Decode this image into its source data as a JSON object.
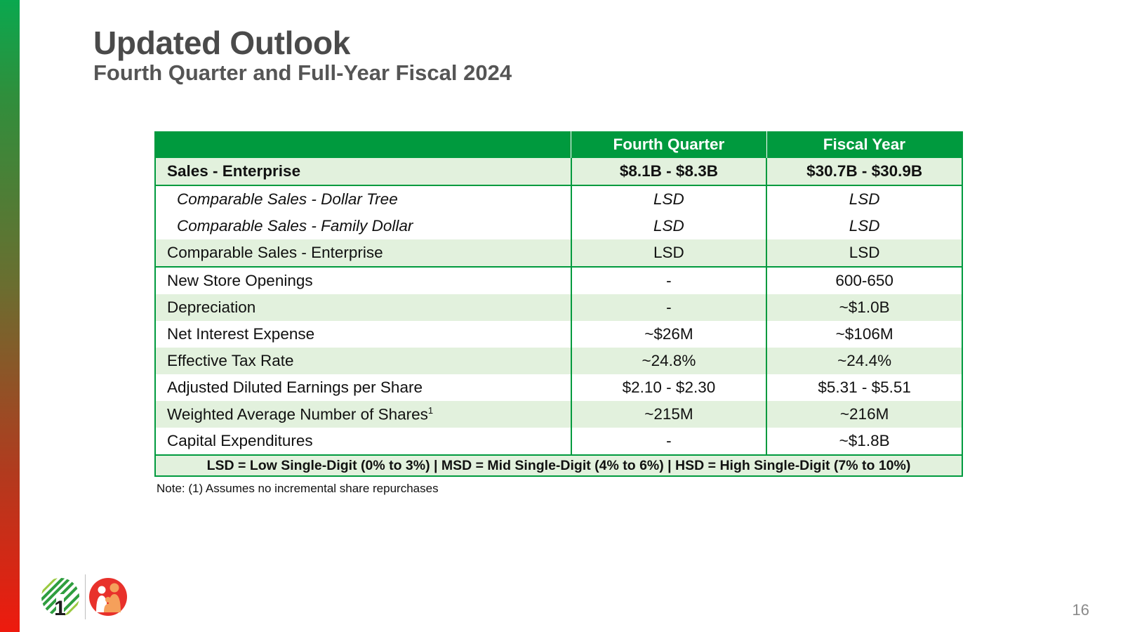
{
  "header": {
    "title": "Updated Outlook",
    "subtitle": "Fourth Quarter and Full-Year Fiscal 2024"
  },
  "table": {
    "columns": [
      "",
      "Fourth Quarter",
      "Fiscal Year"
    ],
    "rows": [
      {
        "label": "Sales - Enterprise",
        "q4": "$8.1B - $8.3B",
        "fy": "$30.7B - $30.9B"
      },
      {
        "label": "Comparable Sales - Dollar Tree",
        "q4": "LSD",
        "fy": "LSD"
      },
      {
        "label": "Comparable Sales - Family Dollar",
        "q4": "LSD",
        "fy": "LSD"
      },
      {
        "label": "Comparable Sales - Enterprise",
        "q4": "LSD",
        "fy": "LSD"
      },
      {
        "label": "New Store Openings",
        "q4": "-",
        "fy": "600-650"
      },
      {
        "label": "Depreciation",
        "q4": "-",
        "fy": "~$1.0B"
      },
      {
        "label": "Net Interest Expense",
        "q4": "~$26M",
        "fy": "~$106M"
      },
      {
        "label": "Effective Tax Rate",
        "q4": "~24.8%",
        "fy": "~24.4%"
      },
      {
        "label": "Adjusted Diluted Earnings per Share",
        "q4": "$2.10 - $2.30",
        "fy": "$5.31 - $5.51"
      },
      {
        "label": "Weighted Average Number of Shares",
        "sup": "1",
        "q4": "~215M",
        "fy": "~216M"
      },
      {
        "label": "Capital Expenditures",
        "q4": "-",
        "fy": "~$1.8B"
      }
    ],
    "legend": "LSD = Low Single-Digit (0% to 3%) | MSD = Mid Single-Digit (4% to 6%) | HSD = High Single-Digit (7% to 10%)"
  },
  "note": "Note: (1) Assumes no incremental share repurchases",
  "footer": {
    "page_number": "16",
    "logos": [
      "dollar-tree-logo-icon",
      "family-dollar-logo-icon"
    ]
  },
  "colors": {
    "accent_green": "#009a3e",
    "row_shade": "#e2f1dd",
    "family_dollar_red": "#e8312b",
    "family_dollar_orange": "#f5a05b"
  }
}
